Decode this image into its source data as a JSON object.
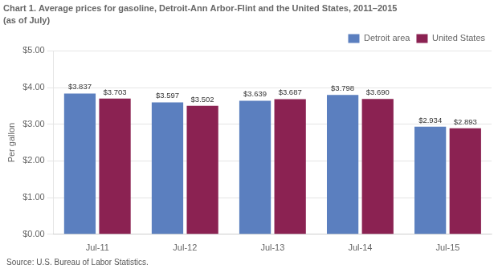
{
  "chart_data": {
    "type": "bar",
    "title": "Chart 1. Average prices for gasoline, Detroit-Ann Arbor-Flint and the United States, 2011–2015",
    "subtitle": "(as of July)",
    "y_label": "Per gallon",
    "source": "Source: U.S. Bureau of Labor Statistics.",
    "categories": [
      "Jul-11",
      "Jul-12",
      "Jul-13",
      "Jul-14",
      "Jul-15"
    ],
    "series": [
      {
        "name": "Detroit area",
        "color": "#5B7FBF",
        "values": [
          3.837,
          3.597,
          3.639,
          3.798,
          2.934
        ],
        "value_labels": [
          "$3.837",
          "$3.597",
          "$3.639",
          "$3.798",
          "$2.934"
        ]
      },
      {
        "name": "United States",
        "color": "#8B2252",
        "values": [
          3.703,
          3.502,
          3.687,
          3.69,
          2.893
        ],
        "value_labels": [
          "$3.703",
          "$3.502",
          "$3.687",
          "$3.690",
          "$2.893"
        ]
      }
    ],
    "ylim": [
      0,
      5.0
    ],
    "yticks": [
      {
        "value": 0,
        "label": "$0.00"
      },
      {
        "value": 1,
        "label": "$1.00"
      },
      {
        "value": 2,
        "label": "$2.00"
      },
      {
        "value": 3,
        "label": "$3.00"
      },
      {
        "value": 4,
        "label": "$4.00"
      },
      {
        "value": 5,
        "label": "$5.00"
      }
    ],
    "grid": true,
    "legend": "top-right",
    "data_labels": true
  }
}
